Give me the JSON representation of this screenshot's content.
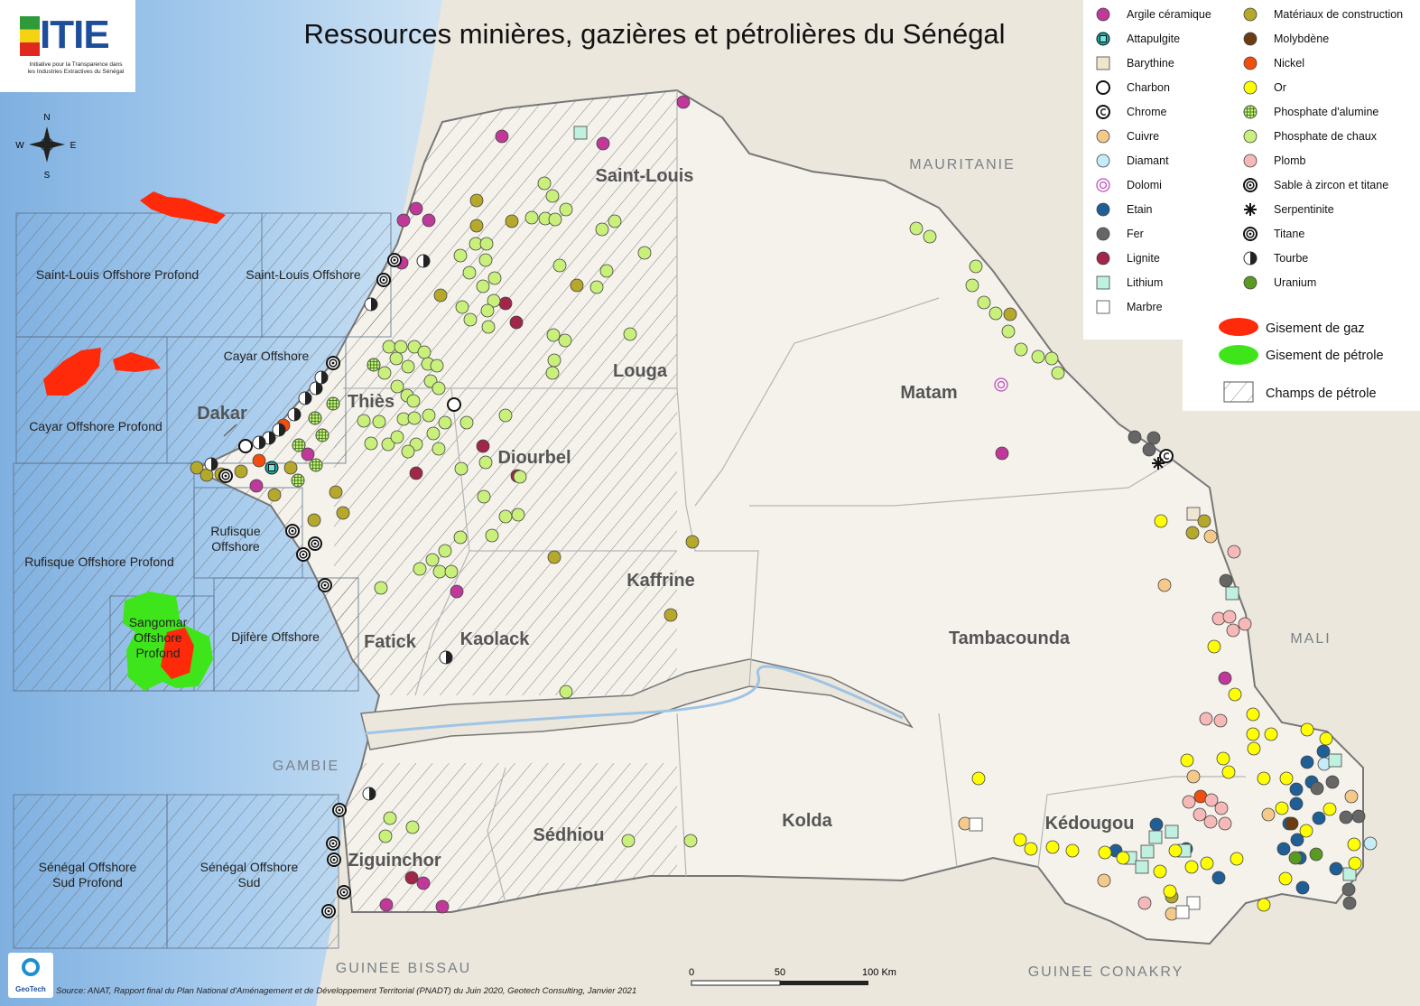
{
  "title": "Ressources minières, gazières et pétrolières du Sénégal",
  "logo": {
    "name": "ITIE",
    "tagline": "Initiative pour la Transparence dans les Industries Extractives du Sénégal"
  },
  "compass": {
    "north": "N",
    "south": "S",
    "east": "E",
    "west": "W"
  },
  "city": "Dakar",
  "regions": [
    "Saint-Louis",
    "Louga",
    "Matam",
    "Thiès",
    "Diourbel",
    "Kaffrine",
    "Fatick",
    "Kaolack",
    "Tambacounda",
    "Kolda",
    "Sédhiou",
    "Ziguinchor",
    "Kédougou"
  ],
  "countries": [
    "MAURITANIE",
    "MALI",
    "GAMBIE",
    "GUINEE BISSAU",
    "GUINEE CONAKRY"
  ],
  "offshore_blocks": [
    {
      "lines": [
        "Saint-Louis Offshore Profond"
      ]
    },
    {
      "lines": [
        "Saint-Louis Offshore"
      ]
    },
    {
      "lines": [
        "Cayar Offshore"
      ]
    },
    {
      "lines": [
        "Cayar Offshore Profond"
      ]
    },
    {
      "lines": [
        "Rufisque",
        "Offshore"
      ]
    },
    {
      "lines": [
        "Rufisque Offshore Profond"
      ]
    },
    {
      "lines": [
        "Sangomar",
        "Offshore",
        "Profond"
      ]
    },
    {
      "lines": [
        "Djifère Offshore"
      ]
    },
    {
      "lines": [
        "Sénégal Offshore",
        "Sud Profond"
      ]
    },
    {
      "lines": [
        "Sénégal Offshore",
        "Sud"
      ]
    }
  ],
  "legend": {
    "resources": [
      "Argile céramique",
      "Attapulgite",
      "Barythine",
      "Charbon",
      "Chrome",
      "Cuivre",
      "Diamant",
      "Dolomi",
      "Etain",
      "Fer",
      "Lignite",
      "Lithium",
      "Marbre",
      "Matériaux de construction",
      "Molybdène",
      "Nickel",
      "Or",
      "Phosphate d'alumine",
      "Phosphate de chaux",
      "Plomb",
      "Sable à zircon et titane",
      "Serpentinite",
      "Titane",
      "Tourbe",
      "Uranium"
    ],
    "deposits": [
      "Gisement de gaz",
      "Gisement de pétrole",
      "Champs de pétrole"
    ]
  },
  "scale": {
    "labels": [
      "0",
      "50",
      "100 Km"
    ]
  },
  "source": "Source: ANAT, Rapport final du Plan National d'Aménagement et de Développement Territorial (PNADT) du Juin 2020, Geotech Consulting, Janvier 2021",
  "credit": "GeoTech"
}
